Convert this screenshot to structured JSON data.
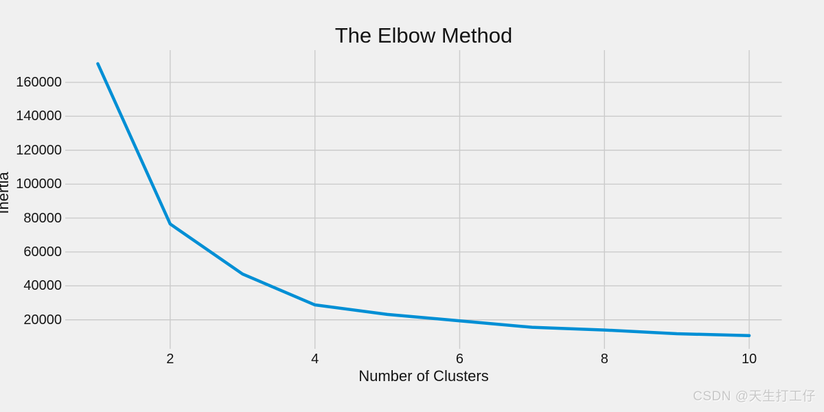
{
  "watermark": "CSDN @天生打工仔",
  "chart_data": {
    "type": "line",
    "title": "The Elbow Method",
    "xlabel": "Number of Clusters",
    "ylabel": "Inertia",
    "x": [
      1,
      2,
      3,
      4,
      5,
      6,
      7,
      8,
      9,
      10
    ],
    "y": [
      171000,
      76500,
      47000,
      28800,
      23200,
      19400,
      15600,
      14000,
      11800,
      10700
    ],
    "xticks": [
      2,
      4,
      6,
      8,
      10
    ],
    "yticks": [
      20000,
      40000,
      60000,
      80000,
      100000,
      120000,
      140000,
      160000
    ],
    "xlim": [
      0.55,
      10.45
    ],
    "ylim": [
      2900,
      179000
    ],
    "grid": true,
    "legend": "none",
    "line_color": "#008fd5",
    "grid_color": "#cbcbcb",
    "background_color": "#f0f0f0",
    "line_width": 4.5
  }
}
